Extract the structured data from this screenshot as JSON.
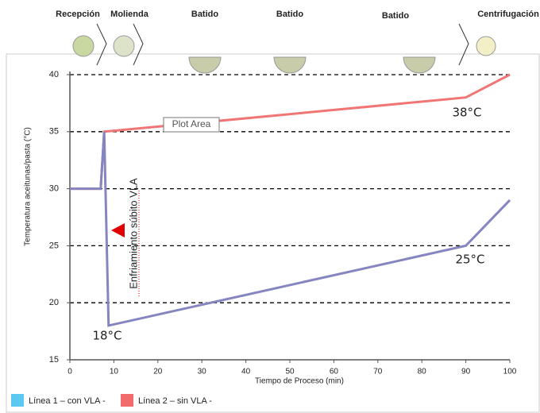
{
  "stages": [
    "Recepción",
    "Molienda",
    "Batido",
    "Batido",
    "Batido",
    "Centrifugación"
  ],
  "chart_data": {
    "type": "line",
    "xlabel": "Tiempo de Proceso (min)",
    "ylabel": "Temperatura aceitunas/pasta (°C)",
    "xlim": [
      0,
      100
    ],
    "xticks": [
      0,
      10,
      20,
      30,
      40,
      50,
      60,
      70,
      80,
      90,
      100
    ],
    "ylim": [
      15,
      40
    ],
    "yticks": [
      15,
      20,
      25,
      30,
      35,
      40
    ],
    "grid": true,
    "legend": "bottom-left",
    "series": [
      {
        "name": "Línea 1 – con VLA -",
        "color": "#8585c0",
        "legend_color": "#5bc8f0",
        "x": [
          0,
          7,
          7.8,
          8.8,
          90,
          100
        ],
        "values": [
          30,
          30,
          35,
          18,
          25,
          29
        ]
      },
      {
        "name": "Línea 2 – sin VLA -",
        "color": "#f07575",
        "legend_color": "#f26b6b",
        "x": [
          0,
          7,
          7.8,
          90,
          100
        ],
        "values": [
          30,
          30,
          35,
          38,
          40
        ]
      }
    ],
    "annotations": [
      "38°C",
      "25°C",
      "18°C",
      "Plot Area",
      "Enfriamiento súbito VLA"
    ]
  }
}
